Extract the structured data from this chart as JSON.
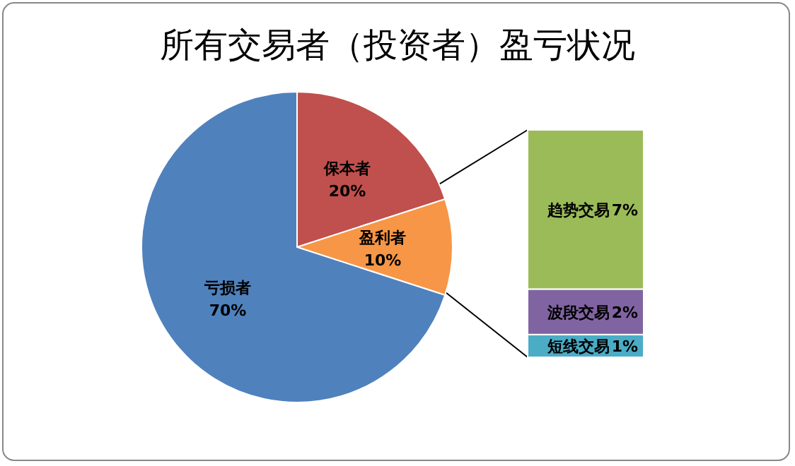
{
  "chart_data": [
    {
      "type": "pie",
      "title": "所有交易者（投资者）盈亏状况",
      "categories": [
        "保本者",
        "盈利者",
        "亏损者"
      ],
      "values": [
        20,
        10,
        70
      ],
      "colors": [
        "#c0504d",
        "#f79646",
        "#4f81bd"
      ],
      "value_labels": [
        "20%",
        "10%",
        "70%"
      ]
    },
    {
      "type": "bar",
      "stacked": true,
      "categories": [
        null
      ],
      "series": [
        {
          "name": "短线交易",
          "color": "#4bacc6",
          "values": [
            1
          ],
          "value_labels": [
            "1%"
          ]
        },
        {
          "name": "波段交易",
          "color": "#8064a2",
          "values": [
            2
          ],
          "value_labels": [
            "2%"
          ]
        },
        {
          "name": "趋势交易",
          "color": "#9bbb59",
          "values": [
            7
          ],
          "value_labels": [
            "7%"
          ]
        }
      ]
    }
  ]
}
